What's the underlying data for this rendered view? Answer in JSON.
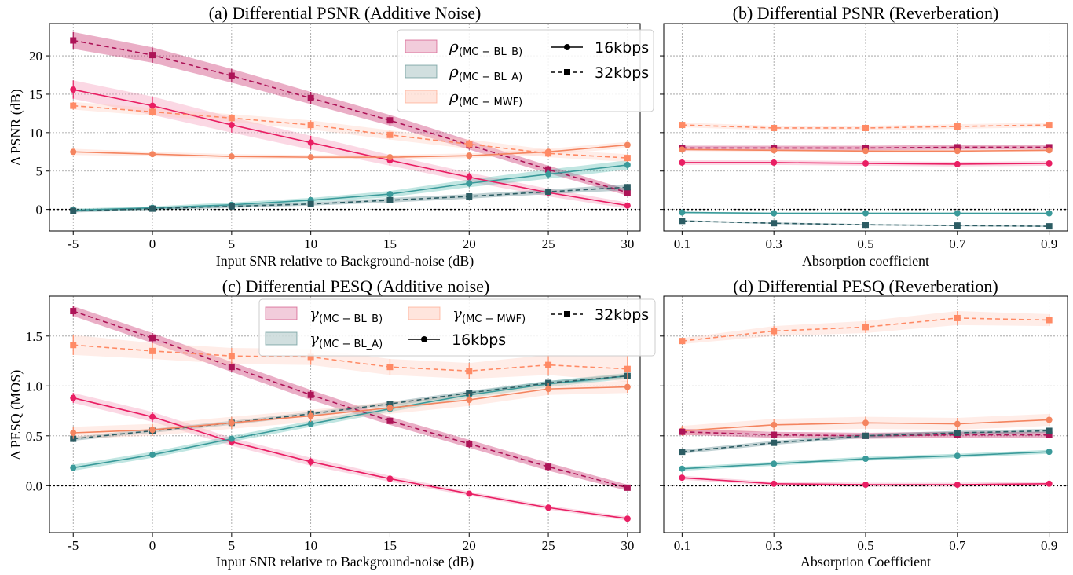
{
  "chart_data": [
    {
      "id": "a",
      "type": "line",
      "title": "(a) Differential PSNR (Additive Noise)",
      "xlabel": "Input SNR relative to Background-noise (dB)",
      "ylabel": "Δ PSNR (dB)",
      "x": [
        -5,
        0,
        5,
        10,
        15,
        20,
        25,
        30
      ],
      "xticks": [
        "-5",
        "0",
        "5",
        "10",
        "15",
        "20",
        "25",
        "30"
      ],
      "xlim": [
        -6.5,
        30.8
      ],
      "ylim": [
        -2.8,
        24.2
      ],
      "yticks": [
        0,
        5,
        10,
        15,
        20
      ],
      "legend": {
        "position": "top-right",
        "ncol": 2,
        "fills": [
          {
            "sym": "ρ",
            "sub": "(MC − BL_B)",
            "color": "#c2185b"
          },
          {
            "sym": "ρ",
            "sub": "(MC − BL_A)",
            "color": "#2f6f6f"
          },
          {
            "sym": "ρ",
            "sub": "(MC − MWF)",
            "color": "#ff8a65"
          }
        ],
        "lines": [
          {
            "label": "16kbps",
            "dash": "solid",
            "marker": "circle"
          },
          {
            "label": "32kbps",
            "dash": "dashed",
            "marker": "square"
          }
        ]
      },
      "series": [
        {
          "name": "MC-BL_B 16kbps",
          "color": "#e91e63",
          "fill": "#f48fb1",
          "dash": "solid",
          "marker": "circle",
          "values": [
            15.6,
            13.5,
            11.0,
            8.7,
            6.4,
            4.2,
            2.2,
            0.5
          ],
          "band": [
            1.2,
            1.2,
            1.0,
            0.9,
            0.7,
            0.6,
            0.5,
            0.4
          ]
        },
        {
          "name": "MC-BL_B 32kbps",
          "color": "#ad1457",
          "fill": "#c2185b",
          "dash": "dashed",
          "marker": "square",
          "values": [
            22.0,
            20.1,
            17.4,
            14.5,
            11.6,
            8.4,
            5.2,
            2.2
          ],
          "band": [
            1.1,
            1.0,
            0.9,
            0.8,
            0.7,
            0.6,
            0.5,
            0.4
          ]
        },
        {
          "name": "MC-BL_A 16kbps",
          "color": "#3a9a9a",
          "fill": "#4db6ac",
          "dash": "solid",
          "marker": "circle",
          "values": [
            -0.1,
            0.2,
            0.6,
            1.2,
            2.0,
            3.4,
            4.6,
            5.8
          ],
          "band": [
            0.2,
            0.2,
            0.3,
            0.3,
            0.4,
            0.5,
            0.6,
            0.6
          ]
        },
        {
          "name": "MC-BL_A 32kbps",
          "color": "#2c5c63",
          "fill": "#4a7a80",
          "dash": "dashed",
          "marker": "square",
          "values": [
            -0.2,
            0.1,
            0.4,
            0.7,
            1.2,
            1.7,
            2.3,
            2.9
          ],
          "band": [
            0.2,
            0.2,
            0.2,
            0.2,
            0.3,
            0.3,
            0.3,
            0.4
          ]
        },
        {
          "name": "MC-MWF 16kbps",
          "color": "#f4845f",
          "fill": "#ffccbc",
          "dash": "solid",
          "marker": "circle",
          "values": [
            7.5,
            7.2,
            6.9,
            6.8,
            6.8,
            7.0,
            7.5,
            8.4
          ],
          "band": [
            0.4,
            0.3,
            0.3,
            0.3,
            0.3,
            0.3,
            0.4,
            0.4
          ]
        },
        {
          "name": "MC-MWF 32kbps",
          "color": "#ff8a65",
          "fill": "#ffccbc",
          "dash": "dashed",
          "marker": "square",
          "values": [
            13.5,
            12.7,
            11.9,
            11.0,
            9.7,
            8.5,
            7.3,
            6.7
          ],
          "band": [
            0.5,
            0.5,
            0.5,
            0.6,
            0.6,
            0.6,
            0.5,
            0.5
          ]
        }
      ]
    },
    {
      "id": "b",
      "type": "line",
      "title": "(b) Differential PSNR (Reverberation)",
      "xlabel": "Absorption coefficient",
      "ylabel": "",
      "x": [
        0.1,
        0.3,
        0.5,
        0.7,
        0.9
      ],
      "xticks": [
        "0.1",
        "0.3",
        "0.5",
        "0.7",
        "0.9"
      ],
      "xlim": [
        0.06,
        0.94
      ],
      "ylim": [
        -2.8,
        24.2
      ],
      "yticks": [
        0,
        5,
        10,
        15,
        20
      ],
      "series": [
        {
          "name": "MC-MWF 32kbps",
          "color": "#ff8a65",
          "fill": "#ffccbc",
          "dash": "dashed",
          "marker": "square",
          "values": [
            11.0,
            10.6,
            10.6,
            10.8,
            11.0
          ],
          "band": [
            0.3,
            0.3,
            0.3,
            0.3,
            0.3
          ]
        },
        {
          "name": "MC-BL_B 32kbps",
          "color": "#ad1457",
          "fill": "#c2185b",
          "dash": "dashed",
          "marker": "square",
          "values": [
            8.0,
            8.0,
            8.0,
            8.1,
            8.1
          ],
          "band": [
            0.3,
            0.3,
            0.3,
            0.3,
            0.3
          ]
        },
        {
          "name": "MC-MWF 16kbps",
          "color": "#f4845f",
          "fill": "#ffccbc",
          "dash": "solid",
          "marker": "circle",
          "values": [
            7.8,
            7.7,
            7.6,
            7.6,
            7.7
          ],
          "band": [
            0.2,
            0.2,
            0.2,
            0.2,
            0.2
          ]
        },
        {
          "name": "MC-BL_B 16kbps",
          "color": "#e91e63",
          "fill": "#f48fb1",
          "dash": "solid",
          "marker": "circle",
          "values": [
            6.1,
            6.1,
            6.0,
            5.9,
            6.0
          ],
          "band": [
            0.3,
            0.3,
            0.3,
            0.3,
            0.3
          ]
        },
        {
          "name": "MC-BL_A 16kbps",
          "color": "#3a9a9a",
          "fill": "#4db6ac",
          "dash": "solid",
          "marker": "circle",
          "values": [
            -0.4,
            -0.5,
            -0.5,
            -0.5,
            -0.5
          ],
          "band": [
            0.1,
            0.1,
            0.1,
            0.1,
            0.1
          ]
        },
        {
          "name": "MC-BL_A 32kbps",
          "color": "#2c5c63",
          "fill": "#4a7a80",
          "dash": "dashed",
          "marker": "square",
          "values": [
            -1.5,
            -1.8,
            -2.0,
            -2.1,
            -2.2
          ],
          "band": [
            0.1,
            0.1,
            0.1,
            0.1,
            0.1
          ]
        }
      ]
    },
    {
      "id": "c",
      "type": "line",
      "title": "(c) Differential PESQ (Additive noise)",
      "xlabel": "Input SNR relative to Background-noise (dB)",
      "ylabel": "Δ PESQ (MOS)",
      "x": [
        -5,
        0,
        5,
        10,
        15,
        20,
        25,
        30
      ],
      "xticks": [
        "-5",
        "0",
        "5",
        "10",
        "15",
        "20",
        "25",
        "30"
      ],
      "xlim": [
        -6.5,
        30.8
      ],
      "ylim": [
        -0.47,
        1.9
      ],
      "yticks": [
        0.0,
        0.5,
        1.0,
        1.5
      ],
      "yticklabels": [
        "0.0",
        "0.5",
        "1.0",
        "1.5"
      ],
      "legend": {
        "position": "top-center",
        "ncol": 3,
        "fills": [
          {
            "sym": "γ",
            "sub": "(MC − BL_B)",
            "color": "#c2185b"
          },
          {
            "sym": "γ",
            "sub": "(MC − BL_A)",
            "color": "#2f6f6f"
          },
          {
            "sym": "γ",
            "sub": "(MC − MWF)",
            "color": "#ff8a65"
          }
        ],
        "lines": [
          {
            "label": "16kbps",
            "dash": "solid",
            "marker": "circle"
          },
          {
            "label": "32kbps",
            "dash": "dashed",
            "marker": "square"
          }
        ]
      },
      "series": [
        {
          "name": "MC-BL_B 16kbps",
          "color": "#e91e63",
          "fill": "#f48fb1",
          "dash": "solid",
          "marker": "circle",
          "values": [
            0.88,
            0.69,
            0.44,
            0.24,
            0.07,
            -0.08,
            -0.22,
            -0.33
          ],
          "band": [
            0.05,
            0.05,
            0.04,
            0.04,
            0.03,
            0.02,
            0.02,
            0.02
          ]
        },
        {
          "name": "MC-BL_B 32kbps",
          "color": "#ad1457",
          "fill": "#c2185b",
          "dash": "dashed",
          "marker": "square",
          "values": [
            1.75,
            1.48,
            1.19,
            0.91,
            0.65,
            0.42,
            0.19,
            -0.02
          ],
          "band": [
            0.05,
            0.05,
            0.05,
            0.05,
            0.04,
            0.04,
            0.04,
            0.03
          ]
        },
        {
          "name": "MC-BL_A 16kbps",
          "color": "#3a9a9a",
          "fill": "#4db6ac",
          "dash": "solid",
          "marker": "circle",
          "values": [
            0.18,
            0.31,
            0.47,
            0.62,
            0.77,
            0.91,
            1.02,
            1.1
          ],
          "band": [
            0.03,
            0.03,
            0.03,
            0.03,
            0.03,
            0.03,
            0.03,
            0.03
          ]
        },
        {
          "name": "MC-BL_A 32kbps",
          "color": "#2c5c63",
          "fill": "#4a7a80",
          "dash": "dashed",
          "marker": "square",
          "values": [
            0.47,
            0.55,
            0.63,
            0.72,
            0.82,
            0.93,
            1.03,
            1.1
          ],
          "band": [
            0.02,
            0.02,
            0.02,
            0.02,
            0.02,
            0.02,
            0.02,
            0.02
          ]
        },
        {
          "name": "MC-MWF 16kbps",
          "color": "#f4845f",
          "fill": "#ffccbc",
          "dash": "solid",
          "marker": "circle",
          "values": [
            0.53,
            0.56,
            0.63,
            0.7,
            0.78,
            0.86,
            0.97,
            0.99
          ],
          "band": [
            0.06,
            0.06,
            0.06,
            0.06,
            0.06,
            0.06,
            0.06,
            0.06
          ]
        },
        {
          "name": "MC-MWF 32kbps",
          "color": "#ff8a65",
          "fill": "#ffccbc",
          "dash": "dashed",
          "marker": "square",
          "values": [
            1.41,
            1.35,
            1.3,
            1.29,
            1.19,
            1.15,
            1.21,
            1.17
          ],
          "band": [
            0.1,
            0.08,
            0.08,
            0.08,
            0.08,
            0.08,
            0.1,
            0.13
          ]
        }
      ]
    },
    {
      "id": "d",
      "type": "line",
      "title": "(d) Differential PESQ (Reverberation)",
      "xlabel": "Absorption Coefficient",
      "ylabel": "",
      "x": [
        0.1,
        0.3,
        0.5,
        0.7,
        0.9
      ],
      "xticks": [
        "0.1",
        "0.3",
        "0.5",
        "0.7",
        "0.9"
      ],
      "xlim": [
        0.06,
        0.94
      ],
      "ylim": [
        -0.47,
        1.9
      ],
      "yticks": [
        0.0,
        0.5,
        1.0,
        1.5
      ],
      "series": [
        {
          "name": "MC-MWF 32kbps",
          "color": "#ff8a65",
          "fill": "#ffccbc",
          "dash": "dashed",
          "marker": "square",
          "values": [
            1.45,
            1.55,
            1.59,
            1.68,
            1.66
          ],
          "band": [
            0.03,
            0.05,
            0.06,
            0.07,
            0.06
          ]
        },
        {
          "name": "MC-MWF 16kbps",
          "color": "#f4845f",
          "fill": "#ffccbc",
          "dash": "solid",
          "marker": "circle",
          "values": [
            0.55,
            0.61,
            0.63,
            0.62,
            0.66
          ],
          "band": [
            0.05,
            0.06,
            0.06,
            0.06,
            0.06
          ]
        },
        {
          "name": "MC-BL_B 32kbps",
          "color": "#ad1457",
          "fill": "#c2185b",
          "dash": "dashed",
          "marker": "square",
          "values": [
            0.54,
            0.51,
            0.5,
            0.51,
            0.51
          ],
          "band": [
            0.03,
            0.03,
            0.03,
            0.03,
            0.03
          ]
        },
        {
          "name": "MC-BL_A 32kbps",
          "color": "#2c5c63",
          "fill": "#4a7a80",
          "dash": "dashed",
          "marker": "square",
          "values": [
            0.34,
            0.43,
            0.5,
            0.53,
            0.55
          ],
          "band": [
            0.02,
            0.02,
            0.02,
            0.02,
            0.02
          ]
        },
        {
          "name": "MC-BL_A 16kbps",
          "color": "#3a9a9a",
          "fill": "#4db6ac",
          "dash": "solid",
          "marker": "circle",
          "values": [
            0.17,
            0.22,
            0.27,
            0.3,
            0.34
          ],
          "band": [
            0.02,
            0.02,
            0.02,
            0.02,
            0.02
          ]
        },
        {
          "name": "MC-BL_B 16kbps",
          "color": "#e91e63",
          "fill": "#f48fb1",
          "dash": "solid",
          "marker": "circle",
          "values": [
            0.08,
            0.02,
            0.01,
            0.01,
            0.02
          ],
          "band": [
            0.02,
            0.02,
            0.02,
            0.02,
            0.02
          ]
        }
      ]
    }
  ]
}
